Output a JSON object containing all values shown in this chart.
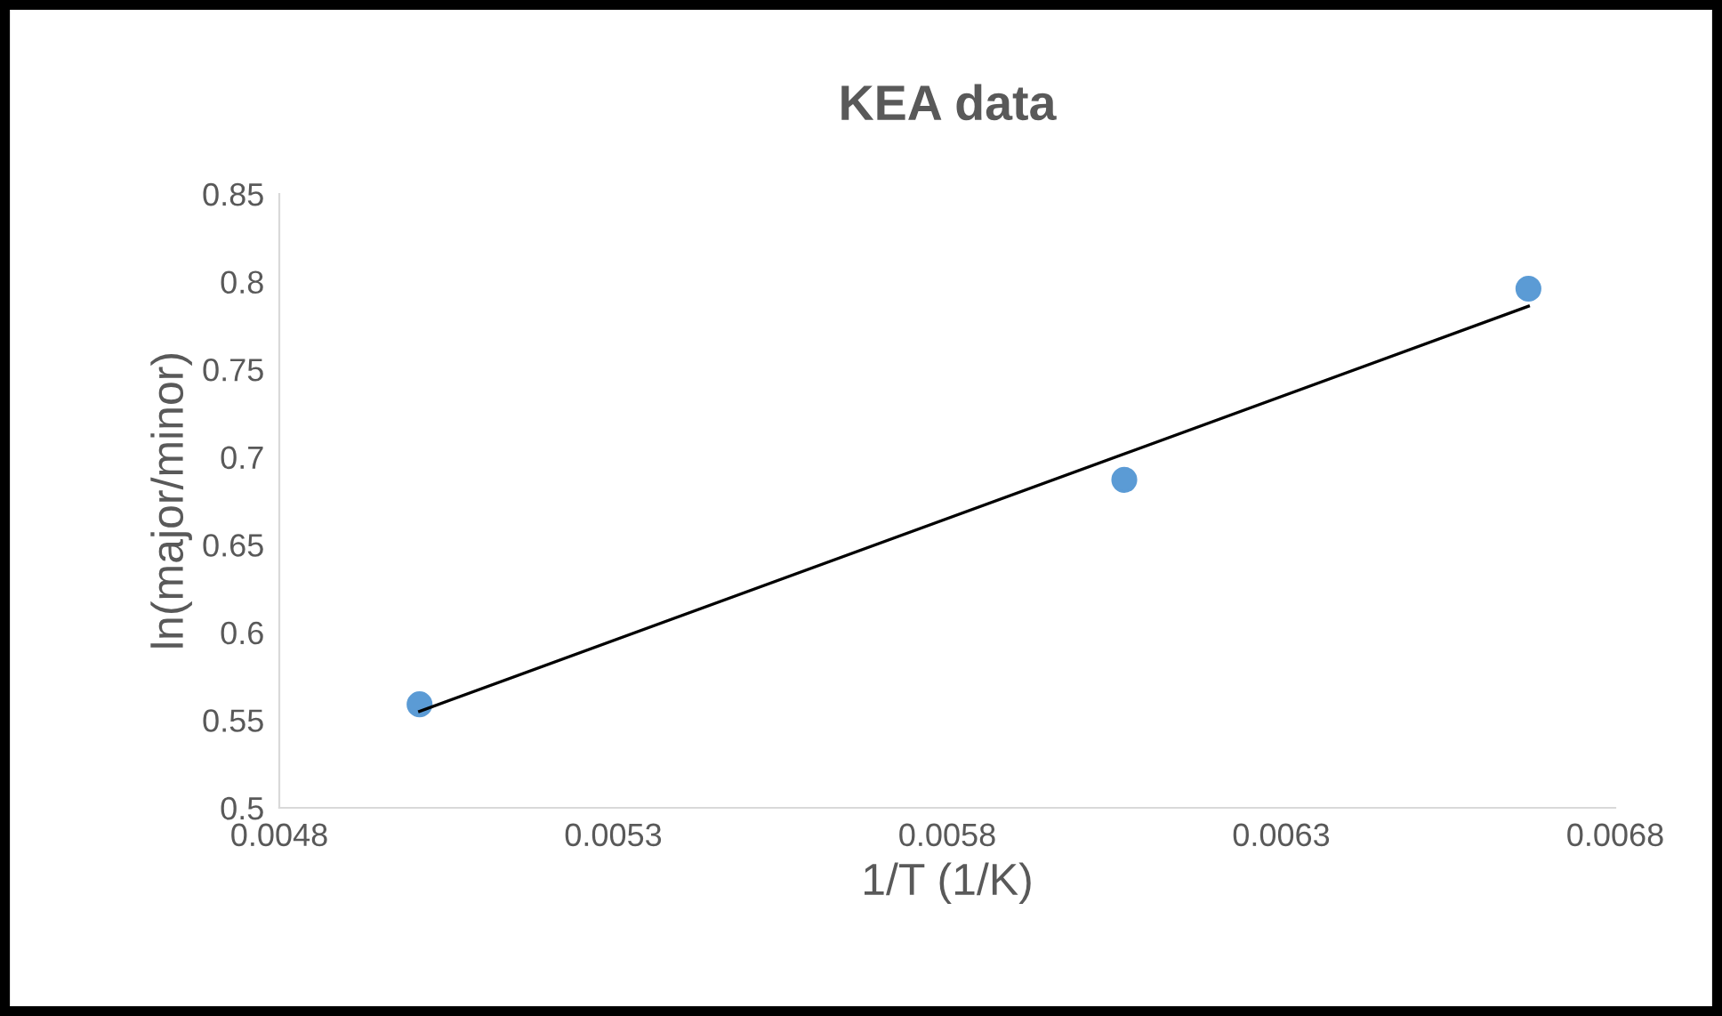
{
  "chart_data": {
    "type": "scatter",
    "title": "KEA data",
    "xlabel": "1/T (1/K)",
    "ylabel": "ln(major/minor)",
    "series": [
      {
        "color": "#5b9bd5",
        "marker": "circle",
        "x": [
          0.00501,
          0.006065,
          0.00667
        ],
        "values": [
          0.559,
          0.687,
          0.796
        ]
      },
      {
        "type": "line",
        "marker": "none",
        "color": "#000000",
        "x": [
          0.00501,
          0.00667
        ],
        "values": [
          0.555,
          0.786
        ]
      }
    ],
    "xlim": [
      0.0048,
      0.0068
    ],
    "xticks": [
      0.0048,
      0.0053,
      0.0058,
      0.0063,
      0.0068
    ],
    "ylim": [
      0.5,
      0.85
    ],
    "yticks": [
      0.5,
      0.55,
      0.6,
      0.65,
      0.7,
      0.75,
      0.8,
      0.85
    ],
    "grid": false,
    "legend": false
  }
}
